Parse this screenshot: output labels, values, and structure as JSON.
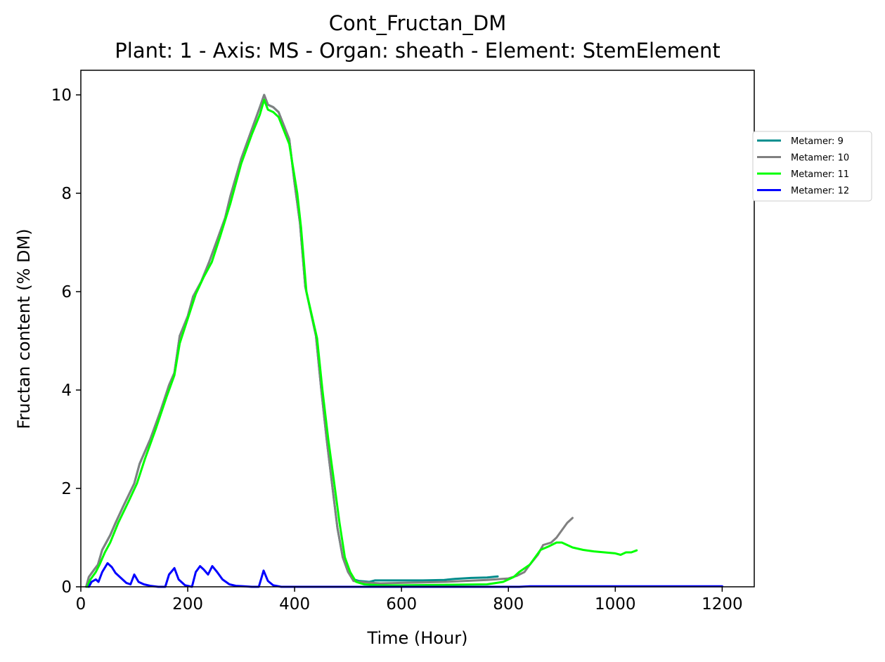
{
  "chart_data": {
    "type": "line",
    "title": "Cont_Fructan_DM",
    "subtitle": "Plant: 1 - Axis: MS - Organ: sheath - Element: StemElement",
    "xlabel": "Time (Hour)",
    "ylabel": "Fructan content (% DM)",
    "xlim": [
      0,
      1260
    ],
    "ylim": [
      0,
      10.5
    ],
    "xticks": [
      0,
      200,
      400,
      600,
      800,
      1000,
      1200
    ],
    "yticks": [
      0,
      2,
      4,
      6,
      8,
      10
    ],
    "grid": false,
    "legend_position": "outside-right",
    "series": [
      {
        "name": "Metamer: 9",
        "color": "#008b8b",
        "points": [
          [
            10,
            0.0
          ],
          [
            15,
            0.2
          ],
          [
            25,
            0.35
          ],
          [
            32,
            0.45
          ],
          [
            40,
            0.75
          ],
          [
            50,
            0.95
          ],
          [
            55,
            1.05
          ],
          [
            65,
            1.3
          ],
          [
            80,
            1.65
          ],
          [
            100,
            2.1
          ],
          [
            110,
            2.5
          ],
          [
            130,
            3.0
          ],
          [
            150,
            3.6
          ],
          [
            165,
            4.1
          ],
          [
            175,
            4.35
          ],
          [
            185,
            5.1
          ],
          [
            200,
            5.5
          ],
          [
            210,
            5.9
          ],
          [
            225,
            6.2
          ],
          [
            240,
            6.6
          ],
          [
            260,
            7.2
          ],
          [
            270,
            7.5
          ],
          [
            280,
            7.95
          ],
          [
            300,
            8.7
          ],
          [
            320,
            9.3
          ],
          [
            335,
            9.75
          ],
          [
            343,
            10.0
          ],
          [
            350,
            9.8
          ],
          [
            360,
            9.75
          ],
          [
            370,
            9.65
          ],
          [
            390,
            9.1
          ],
          [
            400,
            8.2
          ],
          [
            410,
            7.4
          ],
          [
            420,
            6.1
          ],
          [
            440,
            5.1
          ],
          [
            450,
            4.0
          ],
          [
            460,
            3.0
          ],
          [
            470,
            2.1
          ],
          [
            480,
            1.2
          ],
          [
            490,
            0.6
          ],
          [
            500,
            0.3
          ],
          [
            510,
            0.15
          ],
          [
            520,
            0.12
          ],
          [
            540,
            0.1
          ],
          [
            550,
            0.13
          ],
          [
            580,
            0.13
          ],
          [
            600,
            0.13
          ],
          [
            640,
            0.13
          ],
          [
            680,
            0.14
          ],
          [
            700,
            0.16
          ],
          [
            730,
            0.18
          ],
          [
            760,
            0.19
          ],
          [
            780,
            0.21
          ]
        ]
      },
      {
        "name": "Metamer: 10",
        "color": "#808080",
        "points": [
          [
            10,
            0.0
          ],
          [
            15,
            0.2
          ],
          [
            25,
            0.35
          ],
          [
            32,
            0.45
          ],
          [
            40,
            0.75
          ],
          [
            50,
            0.95
          ],
          [
            55,
            1.05
          ],
          [
            65,
            1.3
          ],
          [
            80,
            1.65
          ],
          [
            100,
            2.1
          ],
          [
            110,
            2.5
          ],
          [
            130,
            3.0
          ],
          [
            150,
            3.6
          ],
          [
            165,
            4.1
          ],
          [
            175,
            4.35
          ],
          [
            185,
            5.1
          ],
          [
            200,
            5.5
          ],
          [
            210,
            5.9
          ],
          [
            225,
            6.2
          ],
          [
            240,
            6.6
          ],
          [
            260,
            7.2
          ],
          [
            270,
            7.5
          ],
          [
            280,
            7.95
          ],
          [
            300,
            8.7
          ],
          [
            320,
            9.3
          ],
          [
            335,
            9.75
          ],
          [
            343,
            10.0
          ],
          [
            350,
            9.8
          ],
          [
            360,
            9.75
          ],
          [
            370,
            9.65
          ],
          [
            390,
            9.1
          ],
          [
            400,
            8.2
          ],
          [
            410,
            7.4
          ],
          [
            420,
            6.1
          ],
          [
            440,
            5.1
          ],
          [
            450,
            4.0
          ],
          [
            460,
            3.0
          ],
          [
            470,
            2.1
          ],
          [
            480,
            1.2
          ],
          [
            490,
            0.6
          ],
          [
            500,
            0.3
          ],
          [
            510,
            0.12
          ],
          [
            520,
            0.1
          ],
          [
            560,
            0.07
          ],
          [
            600,
            0.08
          ],
          [
            640,
            0.09
          ],
          [
            680,
            0.1
          ],
          [
            720,
            0.12
          ],
          [
            760,
            0.14
          ],
          [
            800,
            0.17
          ],
          [
            815,
            0.22
          ],
          [
            830,
            0.3
          ],
          [
            840,
            0.45
          ],
          [
            855,
            0.65
          ],
          [
            865,
            0.85
          ],
          [
            880,
            0.9
          ],
          [
            890,
            1.0
          ],
          [
            900,
            1.15
          ],
          [
            910,
            1.3
          ],
          [
            920,
            1.4
          ]
        ]
      },
      {
        "name": "Metamer: 11",
        "color": "#00ff00",
        "points": [
          [
            12,
            0.0
          ],
          [
            18,
            0.15
          ],
          [
            28,
            0.3
          ],
          [
            35,
            0.45
          ],
          [
            45,
            0.7
          ],
          [
            55,
            0.9
          ],
          [
            70,
            1.3
          ],
          [
            90,
            1.75
          ],
          [
            105,
            2.1
          ],
          [
            120,
            2.6
          ],
          [
            140,
            3.2
          ],
          [
            160,
            3.85
          ],
          [
            175,
            4.3
          ],
          [
            185,
            4.95
          ],
          [
            200,
            5.45
          ],
          [
            215,
            5.95
          ],
          [
            230,
            6.3
          ],
          [
            245,
            6.6
          ],
          [
            260,
            7.1
          ],
          [
            280,
            7.8
          ],
          [
            300,
            8.6
          ],
          [
            320,
            9.2
          ],
          [
            335,
            9.6
          ],
          [
            343,
            9.9
          ],
          [
            350,
            9.7
          ],
          [
            360,
            9.65
          ],
          [
            370,
            9.55
          ],
          [
            390,
            9.0
          ],
          [
            405,
            8.0
          ],
          [
            412,
            7.3
          ],
          [
            422,
            6.0
          ],
          [
            442,
            5.05
          ],
          [
            452,
            4.0
          ],
          [
            463,
            3.0
          ],
          [
            473,
            2.2
          ],
          [
            484,
            1.3
          ],
          [
            494,
            0.6
          ],
          [
            504,
            0.3
          ],
          [
            515,
            0.1
          ],
          [
            530,
            0.05
          ],
          [
            560,
            0.03
          ],
          [
            600,
            0.03
          ],
          [
            680,
            0.04
          ],
          [
            760,
            0.05
          ],
          [
            790,
            0.1
          ],
          [
            810,
            0.2
          ],
          [
            820,
            0.3
          ],
          [
            840,
            0.45
          ],
          [
            860,
            0.75
          ],
          [
            875,
            0.82
          ],
          [
            890,
            0.9
          ],
          [
            900,
            0.9
          ],
          [
            920,
            0.8
          ],
          [
            940,
            0.75
          ],
          [
            960,
            0.72
          ],
          [
            980,
            0.7
          ],
          [
            1000,
            0.68
          ],
          [
            1010,
            0.65
          ],
          [
            1020,
            0.7
          ],
          [
            1030,
            0.7
          ],
          [
            1040,
            0.74
          ]
        ]
      },
      {
        "name": "Metamer: 12",
        "color": "#0000ff",
        "points": [
          [
            15,
            0.0
          ],
          [
            20,
            0.1
          ],
          [
            28,
            0.15
          ],
          [
            33,
            0.1
          ],
          [
            40,
            0.3
          ],
          [
            50,
            0.48
          ],
          [
            58,
            0.4
          ],
          [
            65,
            0.28
          ],
          [
            73,
            0.2
          ],
          [
            85,
            0.08
          ],
          [
            93,
            0.05
          ],
          [
            100,
            0.25
          ],
          [
            108,
            0.1
          ],
          [
            118,
            0.05
          ],
          [
            130,
            0.02
          ],
          [
            145,
            0.0
          ],
          [
            158,
            0.0
          ],
          [
            165,
            0.25
          ],
          [
            175,
            0.38
          ],
          [
            183,
            0.15
          ],
          [
            195,
            0.03
          ],
          [
            208,
            0.0
          ],
          [
            215,
            0.3
          ],
          [
            223,
            0.42
          ],
          [
            230,
            0.35
          ],
          [
            238,
            0.25
          ],
          [
            246,
            0.42
          ],
          [
            255,
            0.3
          ],
          [
            265,
            0.15
          ],
          [
            278,
            0.05
          ],
          [
            290,
            0.02
          ],
          [
            305,
            0.01
          ],
          [
            320,
            0.0
          ],
          [
            333,
            0.0
          ],
          [
            342,
            0.33
          ],
          [
            350,
            0.12
          ],
          [
            360,
            0.03
          ],
          [
            375,
            0.0
          ],
          [
            400,
            0.0
          ],
          [
            600,
            0.0
          ],
          [
            820,
            0.0
          ],
          [
            840,
            0.01
          ],
          [
            900,
            0.01
          ],
          [
            1000,
            0.01
          ],
          [
            1100,
            0.01
          ],
          [
            1200,
            0.01
          ]
        ]
      }
    ]
  }
}
